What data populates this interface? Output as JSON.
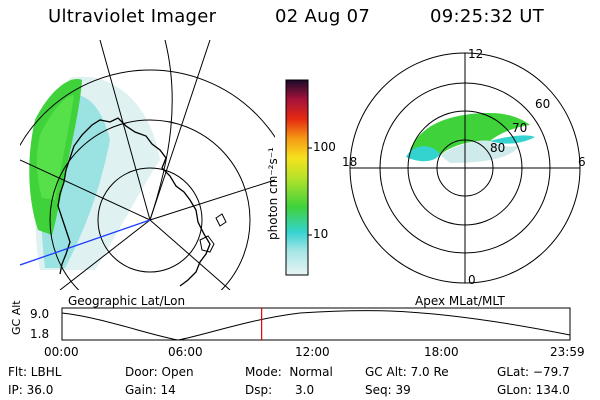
{
  "header": {
    "title": "Ultraviolet Imager",
    "date": "02 Aug 07",
    "time": "09:25:32 UT"
  },
  "left_panel": {
    "caption": "Geographic Lat/Lon"
  },
  "right_panel": {
    "caption": "Apex MLat/MLT",
    "mlt_labels": [
      "12",
      "18",
      "6",
      "0"
    ],
    "mlat_labels": [
      "60",
      "70",
      "80"
    ]
  },
  "colorbar": {
    "title": "photon cm⁻²s⁻¹",
    "ticks": [
      "100",
      "10"
    ]
  },
  "altitude_strip": {
    "axis_label": "GC Alt",
    "y_ticks": [
      "9.0",
      "1.8"
    ],
    "x_ticks": [
      "00:00",
      "06:00",
      "12:00",
      "18:00",
      "23:59"
    ],
    "current_fraction": 0.393
  },
  "info": {
    "flt": "Flt: LBHL",
    "ip": "IP: 36.0",
    "door": "Door: Open",
    "gain": "Gain: 14",
    "mode": "Mode:  Normal",
    "dsp": "Dsp:      3.0",
    "gcalt": "GC Alt: 7.0 Re",
    "seq": "Seq: 39",
    "glat": "GLat: −79.7",
    "glon": "GLon: 134.0"
  },
  "colors": {
    "aurora_green": "#3fd23a",
    "aurora_cyan": "#35d3d0",
    "noise": "#d6ecec",
    "coast_line": "#000000",
    "blue_line": "#1e3cff",
    "time_marker": "#e00000"
  }
}
